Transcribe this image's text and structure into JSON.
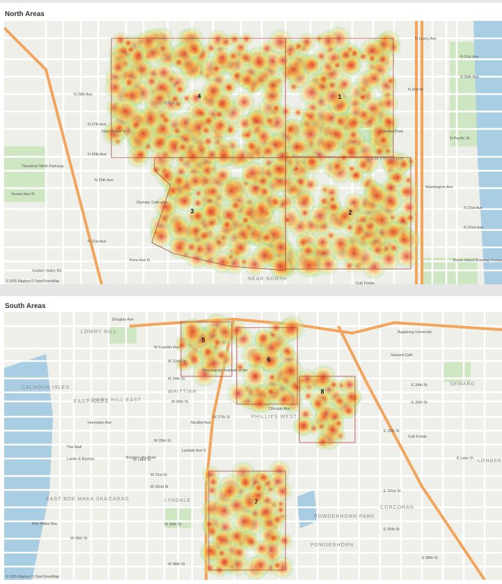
{
  "panels": [
    {
      "title": "North Areas",
      "areas": [
        "1",
        "2",
        "3",
        "4"
      ],
      "labels": [
        "N Lowry Ave",
        "N 31st Ave",
        "N 30th Ave",
        "N 29th Ave",
        "N 27th Ave",
        "N 26th Ave",
        "N 25th Ave",
        "N 23rd Ave",
        "N 22nd Ave",
        "N 21st Ave",
        "Golden Valley Rd",
        "Theodore Wirth Parkway",
        "Olympic Cafe plus",
        "Fairview Park",
        "Boom Island Brewing Company",
        "Cub Foods",
        "NEAR NORTH",
        "JORDAN",
        "HAWTHORNE",
        "Washington Ave",
        "N Pacific St",
        "N 2nd St",
        "Dupont Ave N",
        "Penn Ave N",
        "Xerxes Ave N"
      ],
      "attribution": "© 2025 Mapbox © OpenStreetMap"
    },
    {
      "title": "South Areas",
      "areas": [
        "5",
        "6",
        "8",
        "7"
      ],
      "labels": [
        "Douglas Ave",
        "W Franklin Ave",
        "W 22nd St",
        "W 24th St",
        "W 26th St",
        "W 27th St",
        "W 28th St",
        "W Lake St",
        "W 31st St",
        "W 32nd St",
        "W 35th St",
        "W 36th St",
        "W 38th St",
        "E 24th St",
        "E 26th St",
        "E 28th St",
        "E Lake St",
        "E 32nd St",
        "E 35th St",
        "E 38th St",
        "LOWRY HILL",
        "EAST ISLES",
        "LOWRY HILL EAST",
        "WHITTIER",
        "PHILLIPS WEST",
        "SEWARD",
        "LONGFELLOW",
        "CORCORAN",
        "POWDERHORN",
        "POWDERHORN PARK",
        "LYNDALE",
        "CARAG",
        "EAST BDE MAKA SKA",
        "CALHOUN ISLES",
        "Bde Maka Ska",
        "Minneapolis Institute of Art",
        "Augsburg University",
        "Seward Cafe",
        "Chicago Ave",
        "Nicollet Ave",
        "Lyndale Ave S",
        "Hennepin Ave",
        "The Mall",
        "Lunds & Byerlys",
        "Cub Foods",
        "Bryant-Lake Bowl"
      ],
      "attribution": "© 2025 Mapbox © OpenStreetMap"
    }
  ]
}
